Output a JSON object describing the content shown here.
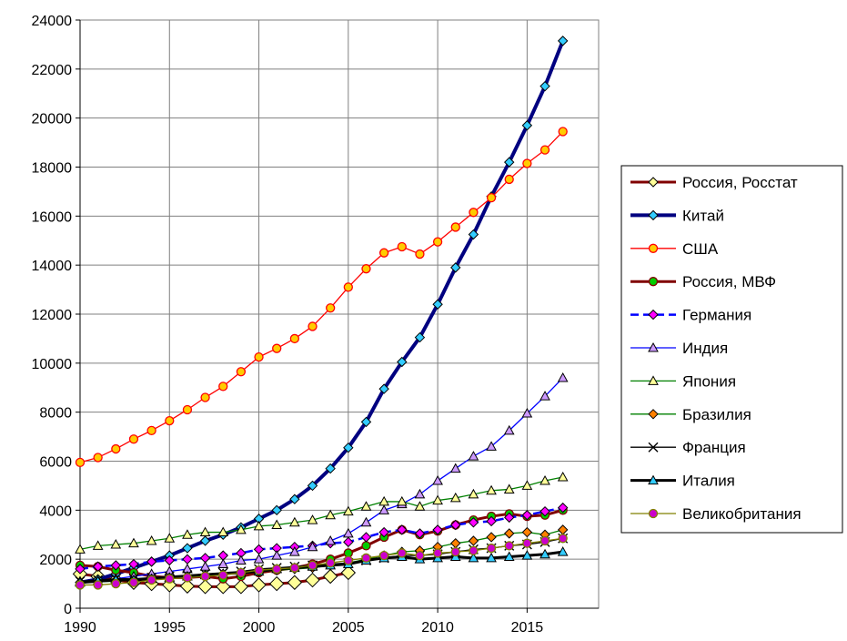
{
  "chart_data": {
    "type": "line",
    "title": "",
    "xlabel": "",
    "ylabel": "",
    "xlim": [
      1990,
      2019
    ],
    "ylim": [
      0,
      24000
    ],
    "x_ticks": [
      "1990",
      "1995",
      "2000",
      "2005",
      "2010",
      "2015"
    ],
    "y_ticks": [
      "0",
      "2000",
      "4000",
      "6000",
      "8000",
      "10000",
      "12000",
      "14000",
      "16000",
      "18000",
      "20000",
      "22000",
      "24000"
    ],
    "grid": true,
    "legend_position": "right",
    "series": [
      {
        "name": "Россия, Росстат",
        "color": "#800000",
        "marker_fill": "#ffff99",
        "marker": "diamond",
        "x": [
          1990,
          1991,
          1992,
          1993,
          1994,
          1995,
          1996,
          1997,
          1998,
          1999,
          2000,
          2001,
          2002,
          2003,
          2004,
          2005
        ],
        "values": [
          1400,
          1300,
          1150,
          1050,
          1000,
          950,
          900,
          880,
          880,
          880,
          950,
          1000,
          1050,
          1150,
          1300,
          1450
        ]
      },
      {
        "name": "Китай",
        "color": "#000080",
        "marker_fill": "#33ccff",
        "marker": "diamond",
        "x": [
          1990,
          1991,
          1992,
          1993,
          1994,
          1995,
          1996,
          1997,
          1998,
          1999,
          2000,
          2001,
          2002,
          2003,
          2004,
          2005,
          2006,
          2007,
          2008,
          2009,
          2010,
          2011,
          2012,
          2013,
          2014,
          2015,
          2016,
          2017
        ],
        "values": [
          1050,
          1180,
          1400,
          1650,
          1900,
          2150,
          2450,
          2750,
          3000,
          3300,
          3650,
          4000,
          4450,
          5000,
          5700,
          6550,
          7600,
          8950,
          10050,
          11050,
          12400,
          13900,
          15250,
          16800,
          18200,
          19700,
          21300,
          23150
        ]
      },
      {
        "name": "США",
        "color": "#ff0000",
        "marker_fill": "#ffcc00",
        "marker": "circle",
        "x": [
          1990,
          1991,
          1992,
          1993,
          1994,
          1995,
          1996,
          1997,
          1998,
          1999,
          2000,
          2001,
          2002,
          2003,
          2004,
          2005,
          2006,
          2007,
          2008,
          2009,
          2010,
          2011,
          2012,
          2013,
          2014,
          2015,
          2016,
          2017
        ],
        "values": [
          5950,
          6150,
          6500,
          6900,
          7250,
          7650,
          8100,
          8600,
          9050,
          9650,
          10250,
          10600,
          11000,
          11500,
          12250,
          13100,
          13850,
          14500,
          14750,
          14450,
          14950,
          15550,
          16150,
          16750,
          17500,
          18150,
          18700,
          19450
        ]
      },
      {
        "name": "Россия, МВФ",
        "color": "#800000",
        "marker_fill": "#00cc00",
        "marker": "circle",
        "x": [
          1990,
          1991,
          1992,
          1993,
          1994,
          1995,
          1996,
          1997,
          1998,
          1999,
          2000,
          2001,
          2002,
          2003,
          2004,
          2005,
          2006,
          2007,
          2008,
          2009,
          2010,
          2011,
          2012,
          2013,
          2014,
          2015,
          2016,
          2017
        ],
        "values": [
          1750,
          1700,
          1550,
          1450,
          1300,
          1250,
          1250,
          1300,
          1200,
          1300,
          1450,
          1550,
          1650,
          1800,
          2000,
          2250,
          2550,
          2900,
          3200,
          3000,
          3150,
          3400,
          3600,
          3750,
          3850,
          3750,
          3800,
          4000
        ]
      },
      {
        "name": "Германия",
        "color": "#0000ff",
        "marker_fill": "#ff00ff",
        "marker": "diamond",
        "dashed": true,
        "x": [
          1990,
          1991,
          1992,
          1993,
          1994,
          1995,
          1996,
          1997,
          1998,
          1999,
          2000,
          2001,
          2002,
          2003,
          2004,
          2005,
          2006,
          2007,
          2008,
          2009,
          2010,
          2011,
          2012,
          2013,
          2014,
          2015,
          2016,
          2017
        ],
        "values": [
          1600,
          1700,
          1750,
          1800,
          1900,
          1950,
          2000,
          2050,
          2150,
          2250,
          2400,
          2450,
          2500,
          2550,
          2650,
          2700,
          2900,
          3100,
          3200,
          3050,
          3200,
          3400,
          3500,
          3550,
          3700,
          3800,
          3950,
          4100
        ]
      },
      {
        "name": "Индия",
        "color": "#0000ff",
        "marker_fill": "#cc99ff",
        "marker": "triangle",
        "x": [
          1990,
          1991,
          1992,
          1993,
          1994,
          1995,
          1996,
          1997,
          1998,
          1999,
          2000,
          2001,
          2002,
          2003,
          2004,
          2005,
          2006,
          2007,
          2008,
          2009,
          2010,
          2011,
          2012,
          2013,
          2014,
          2015,
          2016,
          2017
        ],
        "values": [
          1100,
          1120,
          1200,
          1300,
          1400,
          1500,
          1600,
          1700,
          1800,
          1950,
          2000,
          2150,
          2300,
          2500,
          2750,
          3050,
          3500,
          4000,
          4250,
          4650,
          5200,
          5700,
          6200,
          6600,
          7250,
          7950,
          8650,
          9400
        ]
      },
      {
        "name": "Япония",
        "color": "#008000",
        "marker_fill": "#ffff99",
        "marker": "triangle",
        "x": [
          1990,
          1991,
          1992,
          1993,
          1994,
          1995,
          1996,
          1997,
          1998,
          1999,
          2000,
          2001,
          2002,
          2003,
          2004,
          2005,
          2006,
          2007,
          2008,
          2009,
          2010,
          2011,
          2012,
          2013,
          2014,
          2015,
          2016,
          2017
        ],
        "values": [
          2400,
          2550,
          2600,
          2650,
          2750,
          2850,
          3000,
          3100,
          3100,
          3200,
          3350,
          3400,
          3500,
          3600,
          3800,
          3950,
          4150,
          4350,
          4350,
          4150,
          4400,
          4500,
          4650,
          4800,
          4850,
          5000,
          5200,
          5350
        ]
      },
      {
        "name": "Бразилия",
        "color": "#008000",
        "marker_fill": "#ff8000",
        "marker": "diamond",
        "x": [
          1990,
          1991,
          1992,
          1993,
          1994,
          1995,
          1996,
          1997,
          1998,
          1999,
          2000,
          2001,
          2002,
          2003,
          2004,
          2005,
          2006,
          2007,
          2008,
          2009,
          2010,
          2011,
          2012,
          2013,
          2014,
          2015,
          2016,
          2017
        ],
        "values": [
          1050,
          1080,
          1100,
          1150,
          1200,
          1250,
          1300,
          1350,
          1400,
          1400,
          1500,
          1550,
          1600,
          1650,
          1750,
          1850,
          2000,
          2150,
          2300,
          2350,
          2500,
          2650,
          2750,
          2900,
          3050,
          3100,
          3000,
          3200
        ]
      },
      {
        "name": "Франция",
        "color": "#000000",
        "marker_fill": "none",
        "marker": "x",
        "x": [
          1990,
          1991,
          1992,
          1993,
          1994,
          1995,
          1996,
          1997,
          1998,
          1999,
          2000,
          2001,
          2002,
          2003,
          2004,
          2005,
          2006,
          2007,
          2008,
          2009,
          2010,
          2011,
          2012,
          2013,
          2014,
          2015,
          2016,
          2017
        ],
        "values": [
          1100,
          1150,
          1200,
          1200,
          1250,
          1300,
          1350,
          1400,
          1450,
          1500,
          1600,
          1650,
          1700,
          1750,
          1800,
          1850,
          1950,
          2050,
          2150,
          2150,
          2200,
          2300,
          2400,
          2450,
          2550,
          2600,
          2700,
          2850
        ]
      },
      {
        "name": "Италия",
        "color": "#000000",
        "marker_fill": "#33ccff",
        "marker": "triangle",
        "x": [
          1990,
          1991,
          1992,
          1993,
          1994,
          1995,
          1996,
          1997,
          1998,
          1999,
          2000,
          2001,
          2002,
          2003,
          2004,
          2005,
          2006,
          2007,
          2008,
          2009,
          2010,
          2011,
          2012,
          2013,
          2014,
          2015,
          2016,
          2017
        ],
        "values": [
          1050,
          1100,
          1150,
          1150,
          1200,
          1250,
          1300,
          1350,
          1400,
          1450,
          1500,
          1600,
          1650,
          1700,
          1750,
          1800,
          1950,
          2050,
          2100,
          2000,
          2050,
          2100,
          2050,
          2050,
          2100,
          2150,
          2200,
          2300
        ]
      },
      {
        "name": "Великобритания",
        "color": "#808000",
        "marker_fill": "#cc00cc",
        "marker": "circle",
        "x": [
          1990,
          1991,
          1992,
          1993,
          1994,
          1995,
          1996,
          1997,
          1998,
          1999,
          2000,
          2001,
          2002,
          2003,
          2004,
          2005,
          2006,
          2007,
          2008,
          2009,
          2010,
          2011,
          2012,
          2013,
          2014,
          2015,
          2016,
          2017
        ],
        "values": [
          950,
          950,
          1000,
          1050,
          1150,
          1200,
          1250,
          1300,
          1350,
          1450,
          1550,
          1600,
          1650,
          1750,
          1850,
          1950,
          2050,
          2150,
          2250,
          2150,
          2250,
          2300,
          2350,
          2450,
          2550,
          2650,
          2750,
          2850
        ]
      }
    ]
  }
}
